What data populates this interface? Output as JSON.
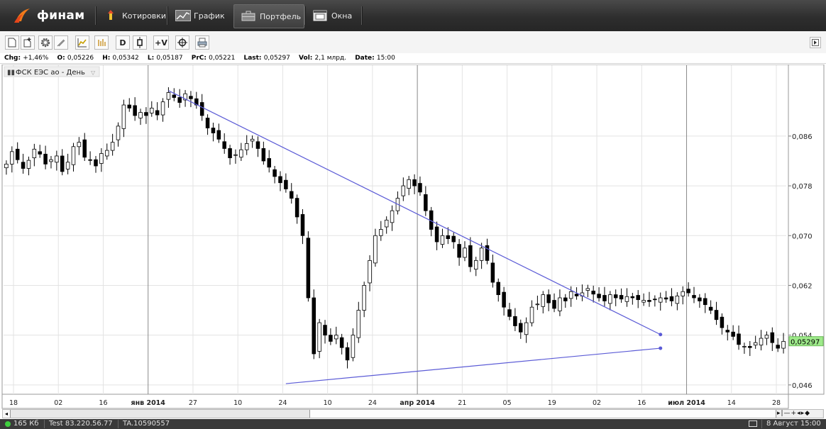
{
  "app": {
    "brand": "финам",
    "nav": [
      {
        "label": "Котировки",
        "icon": "quotes-icon"
      },
      {
        "label": "График",
        "icon": "chart-icon"
      },
      {
        "label": "Портфель",
        "icon": "portfolio-icon"
      },
      {
        "label": "Окна",
        "icon": "windows-icon"
      }
    ]
  },
  "toolbar": {
    "buttons": [
      {
        "name": "new-chart-button",
        "icon": "document-icon",
        "text": ""
      },
      {
        "name": "add-indicator-button",
        "icon": "document-plus-icon",
        "text": ""
      },
      {
        "name": "settings-button",
        "icon": "gear-icon",
        "text": ""
      },
      {
        "name": "draw-tool-button",
        "icon": "pencil-icon",
        "text": ""
      },
      {
        "name": "line-chart-button",
        "icon": "line-chart-icon",
        "text": ""
      },
      {
        "name": "bar-chart-button",
        "icon": "bars-icon",
        "text": ""
      },
      {
        "name": "period-day-button",
        "icon": "",
        "text": "D"
      },
      {
        "name": "candle-type-button",
        "icon": "candle-icon",
        "text": ""
      },
      {
        "name": "volume-button",
        "icon": "",
        "text": "+V"
      },
      {
        "name": "crosshair-button",
        "icon": "crosshair-icon",
        "text": ""
      },
      {
        "name": "print-button",
        "icon": "printer-icon",
        "text": ""
      }
    ]
  },
  "info": [
    {
      "label": "Chg:",
      "value": "+1,46%"
    },
    {
      "label": "O:",
      "value": "0,05226"
    },
    {
      "label": "H:",
      "value": "0,05342"
    },
    {
      "label": "L:",
      "value": "0,05187"
    },
    {
      "label": "PrC:",
      "value": "0,05221"
    },
    {
      "label": "Last:",
      "value": "0,05297"
    },
    {
      "label": "Vol:",
      "value": "2,1 млрд."
    },
    {
      "label": "Date:",
      "value": "15:00"
    }
  ],
  "chart_data": {
    "type": "candlestick",
    "legend": "ФСК ЕЭС ао - День",
    "ylim": [
      0.0445,
      0.0975
    ],
    "y_ticks": [
      "0,086",
      "0,078",
      "0,070",
      "0,062",
      "0,054",
      "0,046"
    ],
    "y_tick_values": [
      0.086,
      0.078,
      0.07,
      0.062,
      0.054,
      0.046
    ],
    "x_ticks": [
      "18",
      "02",
      "16",
      "янв 2014",
      "27",
      "10",
      "24",
      "10",
      "24",
      "апр 2014",
      "21",
      "05",
      "19",
      "02",
      "16",
      "июл 2014",
      "14",
      "28"
    ],
    "last_price_label": "0,05297",
    "last_price": 0.05297,
    "close_series": [
      0.0815,
      0.0835,
      0.0822,
      0.0808,
      0.0821,
      0.0839,
      0.0831,
      0.0815,
      0.0822,
      0.0828,
      0.0803,
      0.0818,
      0.0843,
      0.085,
      0.0826,
      0.0822,
      0.0812,
      0.0832,
      0.0837,
      0.085,
      0.0876,
      0.091,
      0.0905,
      0.0893,
      0.0898,
      0.0893,
      0.0905,
      0.0894,
      0.0915,
      0.093,
      0.0922,
      0.0914,
      0.0928,
      0.092,
      0.091,
      0.0893,
      0.0873,
      0.0865,
      0.0855,
      0.084,
      0.0825,
      0.083,
      0.0838,
      0.0848,
      0.0855,
      0.084,
      0.082,
      0.081,
      0.0795,
      0.0785,
      0.0775,
      0.076,
      0.073,
      0.07,
      0.06,
      0.051,
      0.056,
      0.054,
      0.053,
      0.054,
      0.052,
      0.05,
      0.054,
      0.058,
      0.062,
      0.066,
      0.07,
      0.071,
      0.0725,
      0.074,
      0.076,
      0.078,
      0.079,
      0.078,
      0.077,
      0.074,
      0.071,
      0.069,
      0.07,
      0.0695,
      0.069,
      0.0665,
      0.068,
      0.065,
      0.066,
      0.068,
      0.066,
      0.0625,
      0.0605,
      0.0585,
      0.057,
      0.0555,
      0.0545,
      0.056,
      0.0585,
      0.059,
      0.0605,
      0.0592,
      0.0583,
      0.06,
      0.0595,
      0.061,
      0.0603,
      0.0608,
      0.0615,
      0.0606,
      0.06,
      0.0595,
      0.0605,
      0.06,
      0.0598,
      0.0602,
      0.06,
      0.0597,
      0.0596,
      0.0594,
      0.0597,
      0.06,
      0.0598,
      0.0595,
      0.0603,
      0.061,
      0.0608,
      0.06,
      0.0595,
      0.0589,
      0.058,
      0.0565,
      0.0552,
      0.0545,
      0.0538,
      0.0525,
      0.0522,
      0.052,
      0.0528,
      0.0535,
      0.054,
      0.0528,
      0.0519,
      0.053
    ],
    "trendlines": [
      {
        "from": {
          "x_index": 29,
          "y": 0.0933
        },
        "to": {
          "x_index": 117,
          "y": 0.0541
        }
      },
      {
        "from": {
          "x_index": 50,
          "y": 0.0462
        },
        "to": {
          "x_index": 117,
          "y": 0.0519
        }
      }
    ]
  },
  "status": {
    "traffic": "165 Кб",
    "server": "Test 83.220.56.77",
    "account": "TA.10590557",
    "date": "8 Август 15:00"
  }
}
